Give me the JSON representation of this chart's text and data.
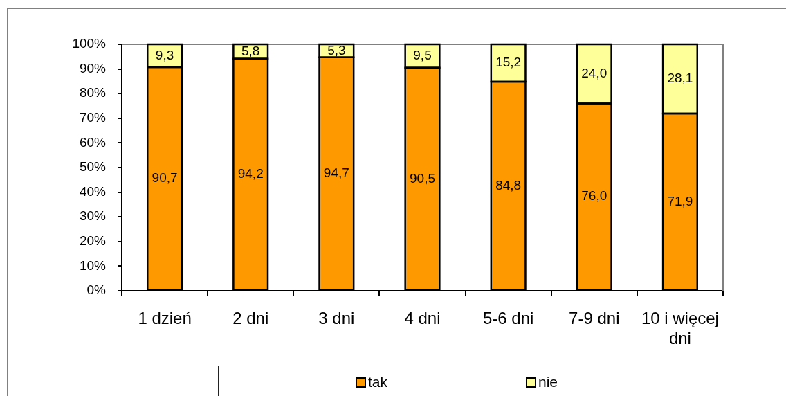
{
  "chart_data": {
    "type": "bar",
    "categories": [
      "1 dzień",
      "2 dni",
      "3 dni",
      "4 dni",
      "5-6 dni",
      "7-9 dni",
      "10 i więcej dni"
    ],
    "series": [
      {
        "name": "tak",
        "color": "#ff9900",
        "values": [
          90.7,
          94.2,
          94.7,
          90.5,
          84.8,
          76.0,
          71.9
        ],
        "value_labels": [
          "90,7",
          "94,2",
          "94,7",
          "90,5",
          "84,8",
          "76,0",
          "71,9"
        ]
      },
      {
        "name": "nie",
        "color": "#ffff99",
        "values": [
          9.3,
          5.8,
          5.3,
          9.5,
          15.2,
          24.0,
          28.1
        ],
        "value_labels": [
          "9,3",
          "5,8",
          "5,3",
          "9,5",
          "15,2",
          "24,0",
          "28,1"
        ]
      }
    ],
    "stacked": true,
    "ylim": [
      0,
      100
    ],
    "yticks": [
      {
        "value": 0,
        "label": "0%"
      },
      {
        "value": 10,
        "label": "10%"
      },
      {
        "value": 20,
        "label": "20%"
      },
      {
        "value": 30,
        "label": "30%"
      },
      {
        "value": 40,
        "label": "40%"
      },
      {
        "value": 50,
        "label": "50%"
      },
      {
        "value": 60,
        "label": "60%"
      },
      {
        "value": 70,
        "label": "70%"
      },
      {
        "value": 80,
        "label": "80%"
      },
      {
        "value": 90,
        "label": "90%"
      },
      {
        "value": 100,
        "label": "100%"
      }
    ],
    "legend": "bottom"
  }
}
